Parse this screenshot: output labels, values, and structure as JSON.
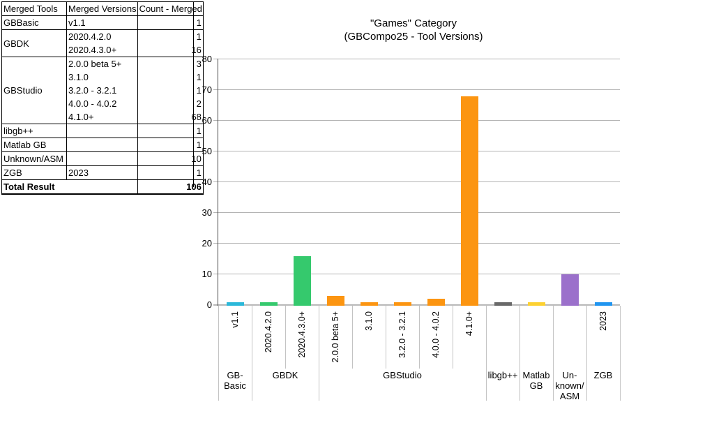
{
  "table": {
    "headers": [
      "Merged Tools",
      "Merged Versions",
      "Count - Merged"
    ],
    "groups": [
      {
        "tool": "GBBasic",
        "rows": [
          {
            "version": "v1.1",
            "count": "1"
          }
        ]
      },
      {
        "tool": "GBDK",
        "rows": [
          {
            "version": "2020.4.2.0",
            "count": "1"
          },
          {
            "version": "2020.4.3.0+",
            "count": "16"
          }
        ]
      },
      {
        "tool": "GBStudio",
        "rows": [
          {
            "version": "2.0.0 beta 5+",
            "count": "3"
          },
          {
            "version": "3.1.0",
            "count": "1"
          },
          {
            "version": "3.2.0 - 3.2.1",
            "count": "1"
          },
          {
            "version": "4.0.0 - 4.0.2",
            "count": "2"
          },
          {
            "version": "4.1.0+",
            "count": "68"
          }
        ]
      },
      {
        "tool": "libgb++",
        "rows": [
          {
            "version": "",
            "count": "1"
          }
        ]
      },
      {
        "tool": "Matlab GB",
        "rows": [
          {
            "version": "",
            "count": "1"
          }
        ]
      },
      {
        "tool": "Unknown/ASM",
        "rows": [
          {
            "version": "",
            "count": "10"
          }
        ]
      },
      {
        "tool": "ZGB",
        "rows": [
          {
            "version": "2023",
            "count": "1"
          }
        ]
      }
    ],
    "total_label": "Total Result",
    "total_count": "106"
  },
  "chart_data": {
    "type": "bar",
    "title": "\"Games\" Category",
    "subtitle": "(GBCompo25 - Tool Versions)",
    "xlabel": "",
    "ylabel": "",
    "ylim": [
      0,
      80
    ],
    "ytick_step": 10,
    "grid": true,
    "legend": "none",
    "axis_colors": {
      "gridline": "#b3b3b3",
      "axis": "#454545",
      "separator": "#c3c3c3"
    },
    "groups": [
      {
        "tool": "GBBasic",
        "label_lines": [
          "GB-",
          "Basic"
        ],
        "bars": [
          {
            "version": "v1.1",
            "value": 1,
            "color": "#2bb8d9"
          }
        ]
      },
      {
        "tool": "GBDK",
        "label_lines": [
          "GBDK"
        ],
        "bars": [
          {
            "version": "2020.4.2.0",
            "value": 1,
            "color": "#35c96d"
          },
          {
            "version": "2020.4.3.0+",
            "value": 16,
            "color": "#35c96d"
          }
        ]
      },
      {
        "tool": "GBStudio",
        "label_lines": [
          "GBStudio"
        ],
        "bars": [
          {
            "version": "2.0.0 beta 5+",
            "value": 3,
            "color": "#fc9511"
          },
          {
            "version": "3.1.0",
            "value": 1,
            "color": "#fc9511"
          },
          {
            "version": "3.2.0 - 3.2.1",
            "value": 1,
            "color": "#fc9511"
          },
          {
            "version": "4.0.0 - 4.0.2",
            "value": 2,
            "color": "#fc9511"
          },
          {
            "version": "4.1.0+",
            "value": 68,
            "color": "#fc9511"
          }
        ]
      },
      {
        "tool": "libgb++",
        "label_lines": [
          "libgb++"
        ],
        "bars": [
          {
            "version": "",
            "value": 1,
            "color": "#696969"
          }
        ]
      },
      {
        "tool": "Matlab GB",
        "label_lines": [
          "Matlab",
          "GB"
        ],
        "bars": [
          {
            "version": "",
            "value": 1,
            "color": "#fdd131"
          }
        ]
      },
      {
        "tool": "Unknown/ASM",
        "label_lines": [
          "Un-",
          "known/",
          "ASM"
        ],
        "bars": [
          {
            "version": "",
            "value": 10,
            "color": "#9b70cb"
          }
        ]
      },
      {
        "tool": "ZGB",
        "label_lines": [
          "ZGB"
        ],
        "bars": [
          {
            "version": "2023",
            "value": 1,
            "color": "#2095f0"
          }
        ]
      }
    ]
  }
}
